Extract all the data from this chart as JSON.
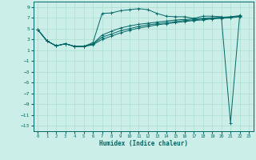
{
  "xlabel": "Humidex (Indice chaleur)",
  "ylabel": "",
  "background_color": "#cceee8",
  "grid_color": "#aaddcc",
  "line_color": "#006666",
  "xlim": [
    -0.5,
    23.5
  ],
  "ylim": [
    -14,
    10
  ],
  "yticks": [
    9,
    7,
    5,
    3,
    1,
    -1,
    -3,
    -5,
    -7,
    -9,
    -11,
    -13
  ],
  "xticks": [
    0,
    1,
    2,
    3,
    4,
    5,
    6,
    7,
    8,
    9,
    10,
    11,
    12,
    13,
    14,
    15,
    16,
    17,
    18,
    19,
    20,
    21,
    22,
    23
  ],
  "series": [
    [
      4.8,
      2.7,
      1.8,
      2.2,
      1.7,
      1.7,
      2.4,
      7.8,
      7.9,
      8.3,
      8.5,
      8.7,
      8.5,
      7.8,
      7.3,
      7.2,
      7.2,
      6.9,
      7.3,
      7.3,
      7.2,
      -12.5,
      7.5
    ],
    [
      4.8,
      2.7,
      1.8,
      2.2,
      1.7,
      1.7,
      2.2,
      3.8,
      4.5,
      5.1,
      5.5,
      5.8,
      6.0,
      6.2,
      6.4,
      6.6,
      6.7,
      6.8,
      6.9,
      7.0,
      7.1,
      7.2,
      7.4
    ],
    [
      4.8,
      2.7,
      1.8,
      2.2,
      1.7,
      1.7,
      2.1,
      3.4,
      4.0,
      4.6,
      5.0,
      5.4,
      5.7,
      5.9,
      6.1,
      6.3,
      6.5,
      6.6,
      6.8,
      6.9,
      7.0,
      7.1,
      7.3
    ],
    [
      4.8,
      2.7,
      1.8,
      2.2,
      1.7,
      1.7,
      2.0,
      3.0,
      3.6,
      4.2,
      4.7,
      5.1,
      5.4,
      5.7,
      5.9,
      6.1,
      6.3,
      6.5,
      6.6,
      6.8,
      6.9,
      7.0,
      7.2
    ]
  ]
}
